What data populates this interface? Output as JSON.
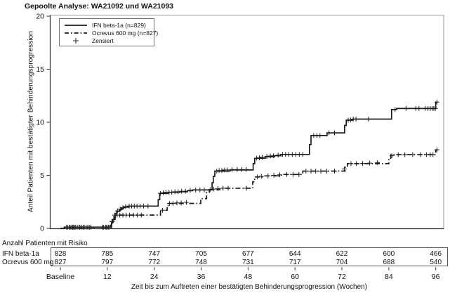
{
  "title": "Gepoolte Analyse: WA21092 und WA21093",
  "colors": {
    "curve": "#1c1c1c",
    "axis": "#2f2f2f",
    "frame": "#9a9a9a",
    "text": "#111111"
  },
  "chart_data": {
    "type": "line",
    "subtype": "kaplan-meier-step",
    "title": "Gepoolte Analyse: WA21092 und WA21093",
    "xlabel": "Zeit bis zum Auftreten einer bestätigten Behinderungsprogression (Wochen)",
    "ylabel": "Anteil Patienten mit bestätigter Behinderungsprogression",
    "ylim": [
      0,
      20
    ],
    "yticks": [
      0,
      5,
      10,
      15,
      20
    ],
    "xticks": [
      {
        "label": "Baseline",
        "week": 0
      },
      {
        "label": "12",
        "week": 12
      },
      {
        "label": "24",
        "week": 24
      },
      {
        "label": "36",
        "week": 36
      },
      {
        "label": "48",
        "week": 48
      },
      {
        "label": "60",
        "week": 60
      },
      {
        "label": "72",
        "week": 72
      },
      {
        "label": "84",
        "week": 84
      },
      {
        "label": "96",
        "week": 96
      }
    ],
    "legend": {
      "position": "top-left",
      "censored_label": "Zensiert",
      "censored_marker": "+"
    },
    "series": [
      {
        "key": "ifn-beta-1a",
        "name": "IFN beta-1a (n=829)",
        "style": "solid",
        "steps": [
          [
            0,
            0
          ],
          [
            1.0,
            0.12
          ],
          [
            12.4,
            0.12
          ],
          [
            12.8,
            0.3
          ],
          [
            13.1,
            0.55
          ],
          [
            13.4,
            0.8
          ],
          [
            13.7,
            1.1
          ],
          [
            14.0,
            1.4
          ],
          [
            14.4,
            1.6
          ],
          [
            15.1,
            1.75
          ],
          [
            15.6,
            1.9
          ],
          [
            16.2,
            2.0
          ],
          [
            17.5,
            2.1
          ],
          [
            24.6,
            2.1
          ],
          [
            25.0,
            2.7
          ],
          [
            25.4,
            3.3
          ],
          [
            27.5,
            3.4
          ],
          [
            30.5,
            3.45
          ],
          [
            32.5,
            3.55
          ],
          [
            33.8,
            3.62
          ],
          [
            38.4,
            3.62
          ],
          [
            38.8,
            4.3
          ],
          [
            39.1,
            4.9
          ],
          [
            39.5,
            5.4
          ],
          [
            43.4,
            5.5
          ],
          [
            48.9,
            5.5
          ],
          [
            49.3,
            6.1
          ],
          [
            49.7,
            6.6
          ],
          [
            52.4,
            6.75
          ],
          [
            54.8,
            6.85
          ],
          [
            56.4,
            6.97
          ],
          [
            63.3,
            6.97
          ],
          [
            63.7,
            7.9
          ],
          [
            64.1,
            8.75
          ],
          [
            67.8,
            8.75
          ],
          [
            68.2,
            9.0
          ],
          [
            72.3,
            9.0
          ],
          [
            72.7,
            9.7
          ],
          [
            73.1,
            10.2
          ],
          [
            74.8,
            10.3
          ],
          [
            84.3,
            10.3
          ],
          [
            84.7,
            11.2
          ],
          [
            86.0,
            11.3
          ],
          [
            95.6,
            11.3
          ],
          [
            96.0,
            11.9
          ],
          [
            96.5,
            11.9
          ]
        ],
        "censored": [
          [
            1.6,
            0.12
          ],
          [
            2.3,
            0.12
          ],
          [
            2.9,
            0.12
          ],
          [
            3.3,
            0.12
          ],
          [
            3.8,
            0.12
          ],
          [
            4.3,
            0.12
          ],
          [
            4.8,
            0.12
          ],
          [
            5.4,
            0.12
          ],
          [
            6.1,
            0.12
          ],
          [
            7.0,
            0.12
          ],
          [
            7.8,
            0.12
          ],
          [
            10.8,
            0.12
          ],
          [
            11.6,
            0.12
          ],
          [
            12.2,
            0.12
          ],
          [
            13.2,
            0.65
          ],
          [
            13.9,
            1.25
          ],
          [
            14.6,
            1.65
          ],
          [
            15.3,
            1.8
          ],
          [
            16.0,
            1.95
          ],
          [
            16.7,
            2.05
          ],
          [
            17.6,
            2.1
          ],
          [
            18.2,
            2.1
          ],
          [
            18.9,
            2.1
          ],
          [
            19.6,
            2.1
          ],
          [
            20.4,
            2.1
          ],
          [
            21.3,
            2.1
          ],
          [
            22.4,
            2.1
          ],
          [
            25.6,
            3.3
          ],
          [
            26.3,
            3.35
          ],
          [
            27.0,
            3.4
          ],
          [
            27.8,
            3.4
          ],
          [
            28.5,
            3.4
          ],
          [
            29.3,
            3.45
          ],
          [
            30.1,
            3.45
          ],
          [
            31.0,
            3.5
          ],
          [
            32.0,
            3.5
          ],
          [
            33.2,
            3.58
          ],
          [
            34.6,
            3.62
          ],
          [
            35.7,
            3.62
          ],
          [
            36.8,
            3.62
          ],
          [
            40.0,
            5.4
          ],
          [
            40.6,
            5.45
          ],
          [
            41.3,
            5.45
          ],
          [
            42.0,
            5.5
          ],
          [
            42.7,
            5.5
          ],
          [
            43.9,
            5.55
          ],
          [
            45.2,
            5.55
          ],
          [
            46.4,
            5.55
          ],
          [
            47.5,
            5.55
          ],
          [
            50.2,
            6.62
          ],
          [
            50.9,
            6.65
          ],
          [
            51.6,
            6.7
          ],
          [
            52.8,
            6.78
          ],
          [
            53.7,
            6.82
          ],
          [
            54.5,
            6.85
          ],
          [
            55.7,
            6.9
          ],
          [
            56.8,
            6.97
          ],
          [
            57.6,
            6.97
          ],
          [
            58.4,
            6.97
          ],
          [
            59.3,
            6.97
          ],
          [
            60.2,
            6.97
          ],
          [
            61.1,
            6.97
          ],
          [
            62.0,
            6.97
          ],
          [
            64.8,
            8.75
          ],
          [
            65.6,
            8.75
          ],
          [
            66.4,
            8.75
          ],
          [
            68.7,
            9.0
          ],
          [
            70.1,
            9.0
          ],
          [
            73.6,
            10.2
          ],
          [
            74.2,
            10.22
          ],
          [
            74.9,
            10.3
          ],
          [
            75.6,
            10.3
          ],
          [
            78.8,
            10.3
          ],
          [
            85.6,
            11.2
          ],
          [
            88.4,
            11.3
          ],
          [
            90.9,
            11.3
          ],
          [
            91.7,
            11.3
          ],
          [
            93.3,
            11.3
          ],
          [
            94.0,
            11.3
          ],
          [
            94.6,
            11.3
          ],
          [
            95.1,
            11.3
          ],
          [
            95.5,
            11.3
          ],
          [
            95.9,
            11.3
          ],
          [
            96.3,
            11.9
          ]
        ]
      },
      {
        "key": "ocrevus-600-mg",
        "name": "Ocrevus 600 mg (n=827)",
        "style": "dash-dot",
        "steps": [
          [
            0,
            0
          ],
          [
            1.2,
            0.1
          ],
          [
            12.7,
            0.1
          ],
          [
            13.1,
            0.45
          ],
          [
            13.5,
            0.85
          ],
          [
            14.0,
            1.25
          ],
          [
            25.2,
            1.25
          ],
          [
            25.6,
            1.7
          ],
          [
            26.9,
            1.7
          ],
          [
            27.3,
            2.15
          ],
          [
            27.8,
            2.35
          ],
          [
            35.5,
            2.35
          ],
          [
            35.9,
            2.8
          ],
          [
            37.0,
            2.8
          ],
          [
            37.4,
            3.4
          ],
          [
            38.1,
            3.65
          ],
          [
            40.8,
            3.78
          ],
          [
            48.8,
            3.78
          ],
          [
            49.2,
            4.4
          ],
          [
            49.7,
            4.85
          ],
          [
            52.3,
            4.95
          ],
          [
            56.5,
            5.08
          ],
          [
            61.5,
            5.08
          ],
          [
            62.0,
            5.4
          ],
          [
            72.4,
            5.4
          ],
          [
            72.8,
            5.75
          ],
          [
            73.4,
            6.1
          ],
          [
            83.6,
            6.1
          ],
          [
            84.0,
            6.6
          ],
          [
            84.5,
            6.95
          ],
          [
            95.6,
            6.95
          ],
          [
            96.0,
            7.4
          ],
          [
            96.5,
            7.4
          ]
        ],
        "censored": [
          [
            1.8,
            0.1
          ],
          [
            2.5,
            0.1
          ],
          [
            3.1,
            0.1
          ],
          [
            3.7,
            0.1
          ],
          [
            4.3,
            0.1
          ],
          [
            5.0,
            0.1
          ],
          [
            5.8,
            0.1
          ],
          [
            6.6,
            0.1
          ],
          [
            7.4,
            0.1
          ],
          [
            11.0,
            0.1
          ],
          [
            11.8,
            0.1
          ],
          [
            12.4,
            0.1
          ],
          [
            13.3,
            0.65
          ],
          [
            14.5,
            1.25
          ],
          [
            15.2,
            1.25
          ],
          [
            16.0,
            1.25
          ],
          [
            16.8,
            1.25
          ],
          [
            17.7,
            1.25
          ],
          [
            18.7,
            1.25
          ],
          [
            19.7,
            1.25
          ],
          [
            20.7,
            1.25
          ],
          [
            26.1,
            1.7
          ],
          [
            27.9,
            2.35
          ],
          [
            28.8,
            2.35
          ],
          [
            29.8,
            2.4
          ],
          [
            30.9,
            2.4
          ],
          [
            32.2,
            2.45
          ],
          [
            38.3,
            3.65
          ],
          [
            39.2,
            3.7
          ],
          [
            40.3,
            3.75
          ],
          [
            41.6,
            3.78
          ],
          [
            42.9,
            3.78
          ],
          [
            47.6,
            3.78
          ],
          [
            50.4,
            4.85
          ],
          [
            51.4,
            4.9
          ],
          [
            53.1,
            4.95
          ],
          [
            54.6,
            5.0
          ],
          [
            56.1,
            5.05
          ],
          [
            57.9,
            5.08
          ],
          [
            59.5,
            5.08
          ],
          [
            61.0,
            5.08
          ],
          [
            62.8,
            5.4
          ],
          [
            64.1,
            5.4
          ],
          [
            65.3,
            5.4
          ],
          [
            66.6,
            5.4
          ],
          [
            68.1,
            5.4
          ],
          [
            70.1,
            5.4
          ],
          [
            72.6,
            5.6
          ],
          [
            74.3,
            6.1
          ],
          [
            75.7,
            6.1
          ],
          [
            77.3,
            6.12
          ],
          [
            79.1,
            6.15
          ],
          [
            81.1,
            6.2
          ],
          [
            84.8,
            6.85
          ],
          [
            86.4,
            6.95
          ],
          [
            88.1,
            6.95
          ],
          [
            90.1,
            6.95
          ],
          [
            92.1,
            6.95
          ],
          [
            93.6,
            6.95
          ],
          [
            94.6,
            6.95
          ],
          [
            95.3,
            6.95
          ],
          [
            96.3,
            7.4
          ]
        ]
      }
    ]
  },
  "risk_table": {
    "header": "Anzahl Patienten mit Risiko",
    "rows": [
      {
        "label": "IFN beta-1a",
        "values": [
          "828",
          "785",
          "747",
          "705",
          "677",
          "644",
          "622",
          "600",
          "466"
        ]
      },
      {
        "label": "Ocrevus 600 mg",
        "values": [
          "827",
          "797",
          "772",
          "748",
          "731",
          "717",
          "704",
          "688",
          "540"
        ]
      }
    ]
  }
}
